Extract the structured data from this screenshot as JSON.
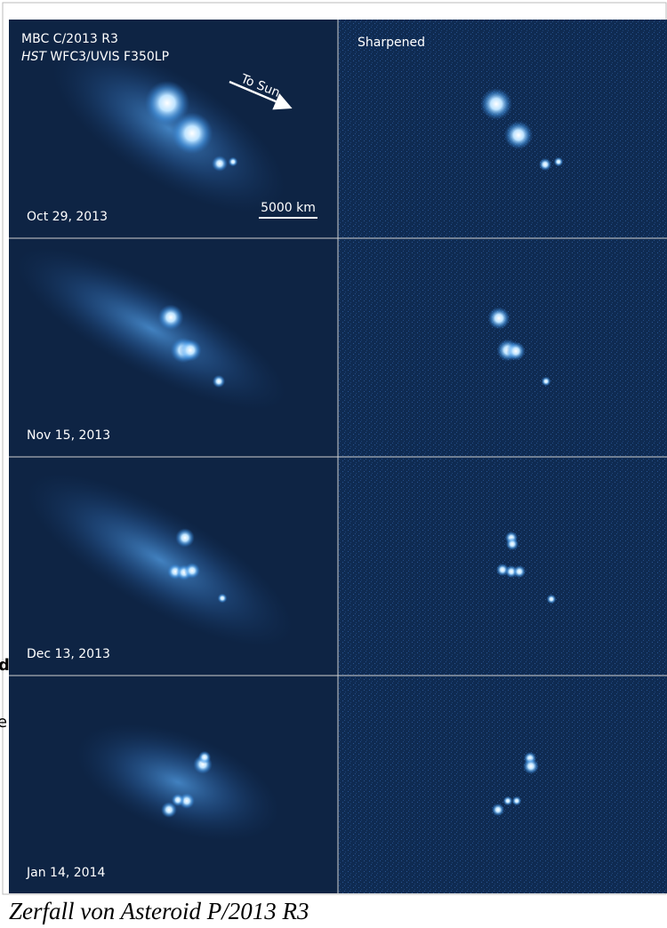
{
  "panels": {
    "title": "MBC C/2013 R3",
    "instrument_prefix": "HST",
    "instrument": "WFC3/UVIS F350LP",
    "direction": "To Sun",
    "scale": "5000 km",
    "sharpened": "Sharpened",
    "dates": [
      "Oct 29, 2013",
      "Nov 15, 2013",
      "Dec 13, 2013",
      "Jan 14, 2014"
    ]
  },
  "caption": "Zerfall von Asteroid P/2013 R3",
  "fragments": [
    "d",
    "e"
  ]
}
